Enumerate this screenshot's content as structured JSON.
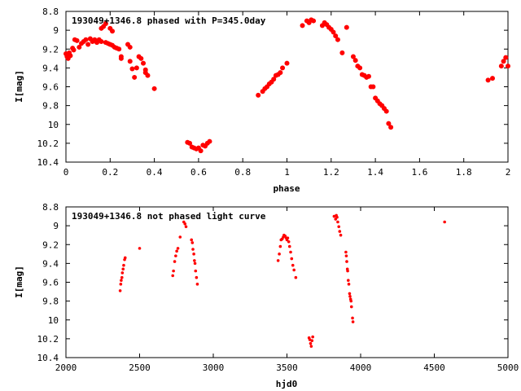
{
  "chart_data": [
    {
      "type": "scatter",
      "title": "193049+1346.8 phased with P=345.0day",
      "xlabel": "phase",
      "ylabel": "I[mag]",
      "xlim": [
        0,
        2
      ],
      "ylim": [
        8.8,
        10.4
      ],
      "y_inverted": true,
      "grid": false,
      "x_ticks": [
        "0",
        "0.2",
        "0.4",
        "0.6",
        "0.8",
        "1",
        "1.2",
        "1.4",
        "1.6",
        "1.8",
        "2"
      ],
      "y_ticks": [
        "8.8",
        "9",
        "9.2",
        "9.4",
        "9.6",
        "9.8",
        "10",
        "10.2",
        "10.4"
      ],
      "marker_color": "#ff0000",
      "points": [
        [
          0.0,
          9.25
        ],
        [
          0.005,
          9.28
        ],
        [
          0.01,
          9.3
        ],
        [
          0.015,
          9.24
        ],
        [
          0.02,
          9.27
        ],
        [
          0.03,
          9.19
        ],
        [
          0.035,
          9.21
        ],
        [
          0.04,
          9.1
        ],
        [
          0.05,
          9.11
        ],
        [
          0.06,
          9.18
        ],
        [
          0.07,
          9.14
        ],
        [
          0.08,
          9.12
        ],
        [
          0.09,
          9.1
        ],
        [
          0.1,
          9.15
        ],
        [
          0.11,
          9.09
        ],
        [
          0.12,
          9.12
        ],
        [
          0.13,
          9.1
        ],
        [
          0.14,
          9.13
        ],
        [
          0.15,
          9.1
        ],
        [
          0.16,
          9.12
        ],
        [
          0.16,
          8.98
        ],
        [
          0.17,
          8.96
        ],
        [
          0.18,
          8.93
        ],
        [
          0.18,
          9.13
        ],
        [
          0.19,
          9.14
        ],
        [
          0.2,
          9.15
        ],
        [
          0.2,
          8.98
        ],
        [
          0.21,
          9.01
        ],
        [
          0.21,
          9.16
        ],
        [
          0.22,
          9.18
        ],
        [
          0.23,
          9.19
        ],
        [
          0.24,
          9.2
        ],
        [
          0.25,
          9.28
        ],
        [
          0.25,
          9.3
        ],
        [
          0.28,
          9.15
        ],
        [
          0.29,
          9.18
        ],
        [
          0.29,
          9.33
        ],
        [
          0.3,
          9.41
        ],
        [
          0.31,
          9.5
        ],
        [
          0.32,
          9.4
        ],
        [
          0.33,
          9.28
        ],
        [
          0.34,
          9.3
        ],
        [
          0.35,
          9.35
        ],
        [
          0.36,
          9.42
        ],
        [
          0.36,
          9.45
        ],
        [
          0.37,
          9.48
        ],
        [
          0.4,
          9.62
        ],
        [
          0.55,
          10.19
        ],
        [
          0.56,
          10.2
        ],
        [
          0.57,
          10.24
        ],
        [
          0.58,
          10.25
        ],
        [
          0.59,
          10.26
        ],
        [
          0.6,
          10.25
        ],
        [
          0.61,
          10.28
        ],
        [
          0.62,
          10.22
        ],
        [
          0.63,
          10.23
        ],
        [
          0.64,
          10.2
        ],
        [
          0.65,
          10.18
        ],
        [
          0.87,
          9.69
        ],
        [
          0.89,
          9.65
        ],
        [
          0.9,
          9.62
        ],
        [
          0.91,
          9.6
        ],
        [
          0.92,
          9.57
        ],
        [
          0.93,
          9.55
        ],
        [
          0.94,
          9.52
        ],
        [
          0.95,
          9.48
        ],
        [
          0.96,
          9.47
        ],
        [
          0.97,
          9.45
        ],
        [
          0.98,
          9.4
        ],
        [
          1.0,
          9.35
        ],
        [
          1.07,
          8.95
        ],
        [
          1.09,
          8.9
        ],
        [
          1.1,
          8.92
        ],
        [
          1.11,
          8.89
        ],
        [
          1.12,
          8.9
        ],
        [
          1.16,
          8.95
        ],
        [
          1.17,
          8.92
        ],
        [
          1.18,
          8.94
        ],
        [
          1.19,
          8.97
        ],
        [
          1.2,
          8.99
        ],
        [
          1.21,
          9.02
        ],
        [
          1.22,
          9.06
        ],
        [
          1.23,
          9.1
        ],
        [
          1.25,
          9.24
        ],
        [
          1.27,
          8.97
        ],
        [
          1.3,
          9.28
        ],
        [
          1.31,
          9.32
        ],
        [
          1.32,
          9.38
        ],
        [
          1.33,
          9.4
        ],
        [
          1.34,
          9.47
        ],
        [
          1.35,
          9.48
        ],
        [
          1.36,
          9.5
        ],
        [
          1.37,
          9.49
        ],
        [
          1.38,
          9.6
        ],
        [
          1.39,
          9.6
        ],
        [
          1.4,
          9.72
        ],
        [
          1.41,
          9.75
        ],
        [
          1.42,
          9.78
        ],
        [
          1.43,
          9.8
        ],
        [
          1.44,
          9.83
        ],
        [
          1.45,
          9.86
        ],
        [
          1.46,
          9.99
        ],
        [
          1.47,
          10.03
        ],
        [
          1.91,
          9.53
        ],
        [
          1.93,
          9.51
        ],
        [
          1.97,
          9.38
        ],
        [
          1.98,
          9.33
        ],
        [
          1.99,
          9.29
        ],
        [
          2.0,
          9.38
        ]
      ]
    },
    {
      "type": "scatter",
      "title": "193049+1346.8 not phased light curve",
      "xlabel": "hjd0",
      "ylabel": "I[mag]",
      "xlim": [
        2000,
        5000
      ],
      "ylim": [
        8.8,
        10.4
      ],
      "y_inverted": true,
      "grid": false,
      "x_ticks": [
        "2000",
        "2500",
        "3000",
        "3500",
        "4000",
        "4500",
        "5000"
      ],
      "y_ticks": [
        "8.8",
        "9",
        "9.2",
        "9.4",
        "9.6",
        "9.8",
        "10",
        "10.2",
        "10.4"
      ],
      "marker_color": "#ff0000",
      "points": [
        [
          2368,
          9.69
        ],
        [
          2372,
          9.62
        ],
        [
          2375,
          9.58
        ],
        [
          2380,
          9.55
        ],
        [
          2383,
          9.5
        ],
        [
          2388,
          9.46
        ],
        [
          2392,
          9.42
        ],
        [
          2398,
          9.36
        ],
        [
          2402,
          9.34
        ],
        [
          2500,
          9.24
        ],
        [
          2725,
          9.53
        ],
        [
          2730,
          9.48
        ],
        [
          2738,
          9.38
        ],
        [
          2745,
          9.32
        ],
        [
          2752,
          9.27
        ],
        [
          2760,
          9.24
        ],
        [
          2775,
          9.12
        ],
        [
          2800,
          8.96
        ],
        [
          2808,
          8.98
        ],
        [
          2815,
          9.01
        ],
        [
          2852,
          9.15
        ],
        [
          2858,
          9.18
        ],
        [
          2862,
          9.25
        ],
        [
          2868,
          9.3
        ],
        [
          2872,
          9.37
        ],
        [
          2876,
          9.4
        ],
        [
          2880,
          9.48
        ],
        [
          2886,
          9.55
        ],
        [
          2892,
          9.62
        ],
        [
          3440,
          9.37
        ],
        [
          3448,
          9.3
        ],
        [
          3455,
          9.22
        ],
        [
          3460,
          9.15
        ],
        [
          3468,
          9.14
        ],
        [
          3475,
          9.12
        ],
        [
          3480,
          9.1
        ],
        [
          3488,
          9.11
        ],
        [
          3495,
          9.13
        ],
        [
          3500,
          9.15
        ],
        [
          3505,
          9.13
        ],
        [
          3512,
          9.17
        ],
        [
          3518,
          9.22
        ],
        [
          3525,
          9.28
        ],
        [
          3532,
          9.35
        ],
        [
          3540,
          9.42
        ],
        [
          3548,
          9.47
        ],
        [
          3560,
          9.55
        ],
        [
          3650,
          10.19
        ],
        [
          3655,
          10.21
        ],
        [
          3660,
          10.25
        ],
        [
          3665,
          10.28
        ],
        [
          3670,
          10.22
        ],
        [
          3675,
          10.18
        ],
        [
          3820,
          8.9
        ],
        [
          3830,
          8.93
        ],
        [
          3835,
          8.89
        ],
        [
          3840,
          8.91
        ],
        [
          3845,
          8.96
        ],
        [
          3852,
          9.01
        ],
        [
          3858,
          9.06
        ],
        [
          3865,
          9.1
        ],
        [
          3900,
          9.28
        ],
        [
          3903,
          9.32
        ],
        [
          3906,
          9.38
        ],
        [
          3910,
          9.46
        ],
        [
          3912,
          9.48
        ],
        [
          3916,
          9.58
        ],
        [
          3920,
          9.62
        ],
        [
          3925,
          9.72
        ],
        [
          3928,
          9.75
        ],
        [
          3932,
          9.78
        ],
        [
          3935,
          9.8
        ],
        [
          3938,
          9.86
        ],
        [
          3945,
          9.98
        ],
        [
          3948,
          10.02
        ],
        [
          4570,
          8.96
        ]
      ]
    }
  ]
}
